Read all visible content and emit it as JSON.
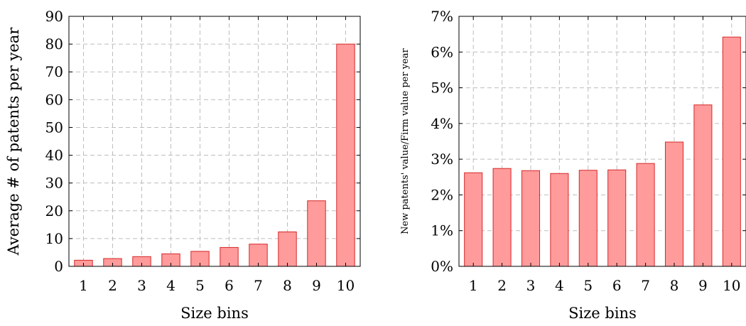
{
  "chart_data": [
    {
      "type": "bar",
      "categories": [
        "1",
        "2",
        "3",
        "4",
        "5",
        "6",
        "7",
        "8",
        "9",
        "10"
      ],
      "values": [
        2.2,
        2.8,
        3.5,
        4.5,
        5.4,
        6.8,
        8.0,
        12.4,
        23.6,
        80.0
      ],
      "xlabel": "Size bins",
      "ylabel": "Average # of patents per year",
      "ylim": [
        0,
        90
      ],
      "yticks": [
        "0",
        "10",
        "20",
        "30",
        "40",
        "50",
        "60",
        "70",
        "80",
        "90"
      ],
      "grid": true,
      "bar_fill": "#ff9b9b",
      "bar_edge": "#d62728"
    },
    {
      "type": "bar",
      "categories": [
        "1",
        "2",
        "3",
        "4",
        "5",
        "6",
        "7",
        "8",
        "9",
        "10"
      ],
      "values": [
        2.62,
        2.74,
        2.68,
        2.6,
        2.69,
        2.7,
        2.88,
        3.48,
        4.52,
        6.42
      ],
      "xlabel": "Size bins",
      "ylabel": "New patents' value/Firm value per year",
      "ylim": [
        0,
        7
      ],
      "yticks": [
        "0%",
        "1%",
        "2%",
        "3%",
        "4%",
        "5%",
        "6%",
        "7%"
      ],
      "grid": true,
      "bar_fill": "#ff9b9b",
      "bar_edge": "#d62728"
    }
  ]
}
